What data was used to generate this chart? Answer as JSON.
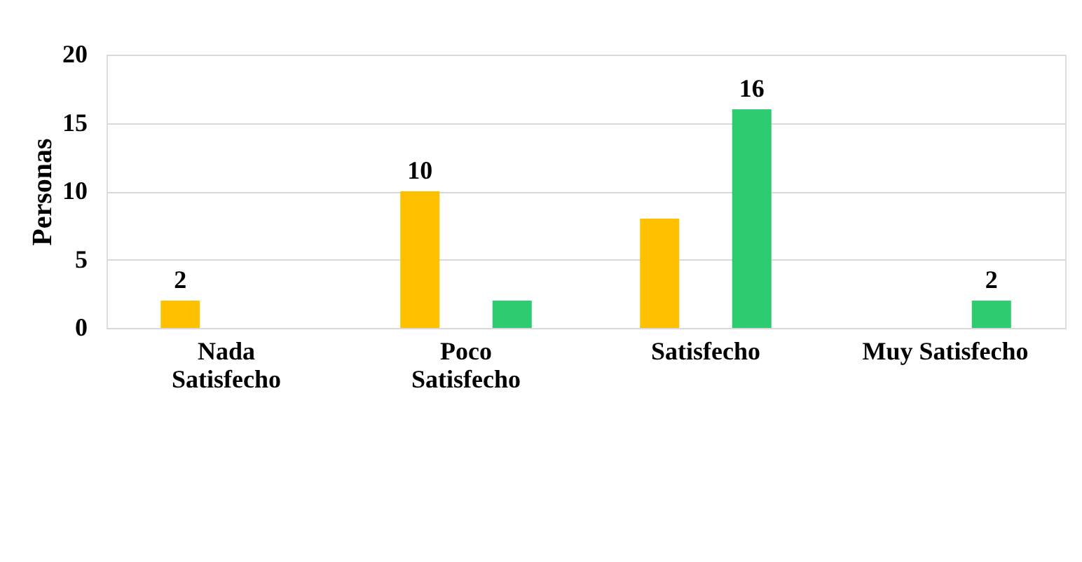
{
  "chart_data": {
    "type": "bar",
    "ylabel": "Personas",
    "categories": [
      "Nada Satisfecho",
      "Poco Satisfecho",
      "Satisfecho",
      "Muy Satisfecho"
    ],
    "series": [
      {
        "color": "#ffc000",
        "values": [
          2,
          10,
          8,
          null
        ],
        "value_labels": [
          "2",
          "10",
          null,
          null
        ]
      },
      {
        "color": "#2ecc71",
        "values": [
          null,
          2,
          16,
          2
        ],
        "value_labels": [
          null,
          null,
          "16",
          "2"
        ]
      }
    ],
    "ylim": [
      0,
      20
    ],
    "yticks": [
      0,
      5,
      10,
      15,
      20
    ],
    "grid": "y"
  }
}
